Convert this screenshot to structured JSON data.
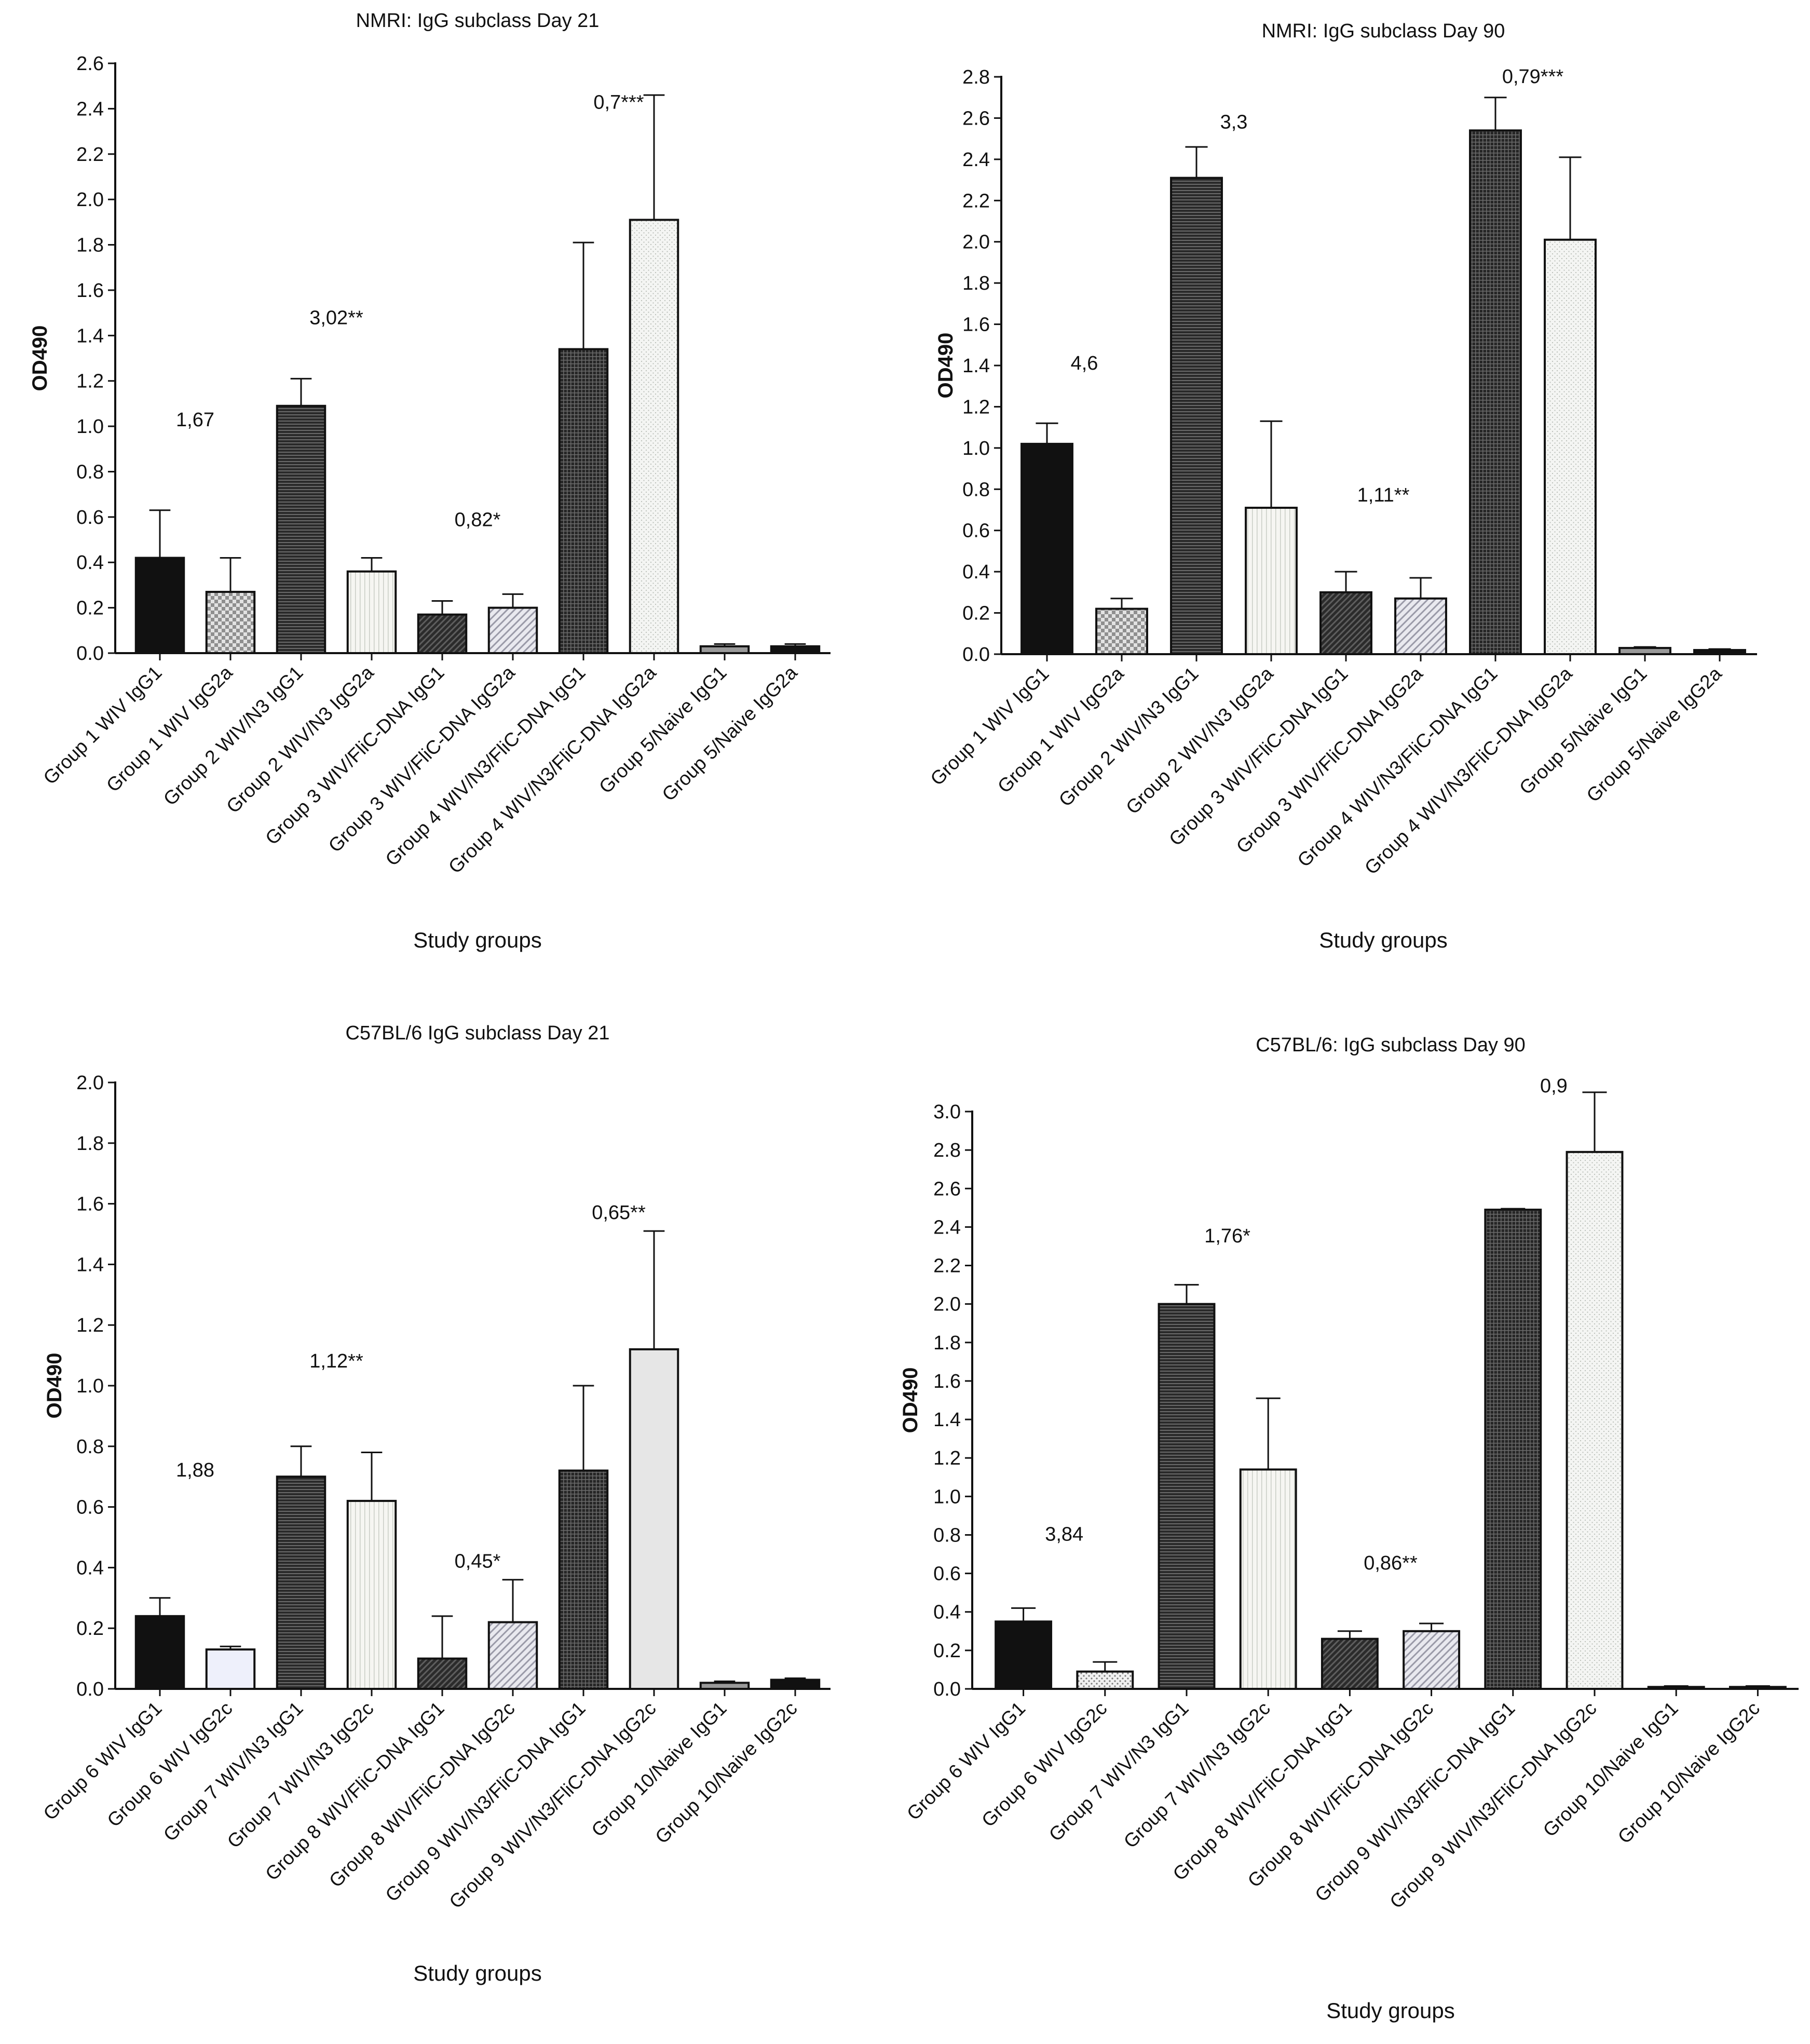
{
  "colors": {
    "axis": "#111111",
    "text": "#111111",
    "bar_stroke": "#111111",
    "background": "#ffffff"
  },
  "chart_data": [
    {
      "type": "bar",
      "title": "NMRI: IgG subclass Day 21",
      "xlabel": "Study groups",
      "ylabel": "OD490",
      "ylim": [
        0,
        2.6
      ],
      "yticks": [
        "0.0",
        "0.2",
        "0.4",
        "0.6",
        "0.8",
        "1.0",
        "1.2",
        "1.4",
        "1.6",
        "1.8",
        "2.0",
        "2.2",
        "2.4",
        "2.6"
      ],
      "categories": [
        "Group 1 WIV IgG1",
        "Group 1 WIV IgG2a",
        "Group 2 WIV/N3 IgG1",
        "Group 2 WIV/N3 IgG2a",
        "Group 3 WIV/FliC-DNA IgG1",
        "Group 3 WIV/FliC-DNA IgG2a",
        "Group 4 WIV/N3/FliC-DNA IgG1",
        "Group 4 WIV/N3/FliC-DNA IgG2a",
        "Group 5/Naive IgG1",
        "Group 5/Naive IgG2a"
      ],
      "values": [
        0.42,
        0.27,
        1.09,
        0.36,
        0.17,
        0.2,
        1.34,
        1.91,
        0.03,
        0.03
      ],
      "errors": [
        0.21,
        0.15,
        0.12,
        0.06,
        0.06,
        0.06,
        0.47,
        0.55,
        0.01,
        0.01
      ],
      "fills": [
        "solid-black",
        "checker",
        "hlines-dark",
        "vlines-light",
        "dark-diag",
        "light-diag",
        "grid-dark",
        "light-dots",
        "solid-gray",
        "solid-black"
      ],
      "annotations": [
        {
          "text": "1,67",
          "x": 0.5,
          "y": 1.0
        },
        {
          "text": "3,02**",
          "x": 2.5,
          "y": 1.45
        },
        {
          "text": "0,82*",
          "x": 4.5,
          "y": 0.56
        },
        {
          "text": "0,7***",
          "x": 6.5,
          "y": 2.4
        }
      ]
    },
    {
      "type": "bar",
      "title": "NMRI: IgG subclass Day 90",
      "xlabel": "Study groups",
      "ylabel": "OD490",
      "ylim": [
        0,
        2.8
      ],
      "yticks": [
        "0.0",
        "0.2",
        "0.4",
        "0.6",
        "0.8",
        "1.0",
        "1.2",
        "1.4",
        "1.6",
        "1.8",
        "2.0",
        "2.2",
        "2.4",
        "2.6",
        "2.8"
      ],
      "categories": [
        "Group 1 WIV IgG1",
        "Group 1 WIV IgG2a",
        "Group 2 WIV/N3 IgG1",
        "Group 2 WIV/N3 IgG2a",
        "Group 3 WIV/FliC-DNA IgG1",
        "Group 3 WIV/FliC-DNA IgG2a",
        "Group 4 WIV/N3/FliC-DNA IgG1",
        "Group 4 WIV/N3/FliC-DNA IgG2a",
        "Group 5/Naive IgG1",
        "Group 5/Naive IgG2a"
      ],
      "values": [
        1.02,
        0.22,
        2.31,
        0.71,
        0.3,
        0.27,
        2.54,
        2.01,
        0.03,
        0.02
      ],
      "errors": [
        0.1,
        0.05,
        0.15,
        0.42,
        0.1,
        0.1,
        0.16,
        0.4,
        0.005,
        0.005
      ],
      "fills": [
        "solid-black",
        "checker",
        "hlines-dark",
        "vlines-light",
        "dark-diag",
        "light-diag",
        "grid-dark",
        "light-dots",
        "solid-gray",
        "solid-black"
      ],
      "annotations": [
        {
          "text": "4,6",
          "x": 0.5,
          "y": 1.38
        },
        {
          "text": "3,3",
          "x": 2.5,
          "y": 2.55
        },
        {
          "text": "1,11**",
          "x": 4.5,
          "y": 0.74
        },
        {
          "text": "0,79***",
          "x": 6.5,
          "y": 2.77
        }
      ]
    },
    {
      "type": "bar",
      "title": "C57BL/6 IgG subclass Day 21",
      "xlabel": "Study groups",
      "ylabel": "OD490",
      "ylim": [
        0,
        2.0
      ],
      "yticks": [
        "0.0",
        "0.2",
        "0.4",
        "0.6",
        "0.8",
        "1.0",
        "1.2",
        "1.4",
        "1.6",
        "1.8",
        "2.0"
      ],
      "categories": [
        "Group 6 WIV IgG1",
        "Group 6 WIV IgG2c",
        "Group 7 WIV/N3 IgG1",
        "Group 7 WIV/N3 IgG2c",
        "Group 8 WIV/FliC-DNA IgG1",
        "Group 8 WIV/FliC-DNA IgG2c",
        "Group 9 WIV/N3/FliC-DNA IgG1",
        "Group 9 WIV/N3/FliC-DNA IgG2c",
        "Group 10/Naive IgG1",
        "Group 10/Naive IgG2c"
      ],
      "values": [
        0.24,
        0.13,
        0.7,
        0.62,
        0.1,
        0.22,
        0.72,
        1.12,
        0.02,
        0.03
      ],
      "errors": [
        0.06,
        0.01,
        0.1,
        0.16,
        0.14,
        0.14,
        0.28,
        0.39,
        0.005,
        0.005
      ],
      "fills": [
        "solid-black",
        "pale-blue",
        "hlines-dark",
        "vlines-light",
        "dark-diag",
        "light-diag",
        "grid-dark",
        "plain-lightgray",
        "solid-gray",
        "solid-black"
      ],
      "annotations": [
        {
          "text": "1,88",
          "x": 0.5,
          "y": 0.7
        },
        {
          "text": "1,12**",
          "x": 2.5,
          "y": 1.06
        },
        {
          "text": "0,45*",
          "x": 4.5,
          "y": 0.4
        },
        {
          "text": "0,65**",
          "x": 6.5,
          "y": 1.55
        }
      ]
    },
    {
      "type": "bar",
      "title": "C57BL/6: IgG subclass Day 90",
      "xlabel": "Study groups",
      "ylabel": "OD490",
      "ylim": [
        0,
        3.0
      ],
      "yticks": [
        "0.0",
        "0.2",
        "0.4",
        "0.6",
        "0.8",
        "1.0",
        "1.2",
        "1.4",
        "1.6",
        "1.8",
        "2.0",
        "2.2",
        "2.4",
        "2.6",
        "2.8",
        "3.0"
      ],
      "categories": [
        "Group 6 WIV IgG1",
        "Group 6 WIV IgG2c",
        "Group 7 WIV/N3 IgG1",
        "Group 7 WIV/N3 IgG2c",
        "Group 8 WIV/FliC-DNA IgG1",
        "Group 8 WIV/FliC-DNA IgG2c",
        "Group 9 WIV/N3/FliC-DNA IgG1",
        "Group 9 WIV/N3/FliC-DNA IgG2c",
        "Group 10/Naive IgG1",
        "Group 10/Naive IgG2c"
      ],
      "values": [
        0.35,
        0.09,
        2.0,
        1.14,
        0.26,
        0.3,
        2.49,
        2.79,
        0.01,
        0.01
      ],
      "errors": [
        0.07,
        0.05,
        0.1,
        0.37,
        0.04,
        0.04,
        0.005,
        0.31,
        0.005,
        0.005
      ],
      "fills": [
        "solid-black",
        "dots-light",
        "hlines-dark",
        "vlines-light",
        "dark-diag",
        "light-diag",
        "grid-dark",
        "light-dots",
        "solid-gray",
        "solid-black"
      ],
      "annotations": [
        {
          "text": "3,84",
          "x": 0.5,
          "y": 0.77
        },
        {
          "text": "1,76*",
          "x": 2.5,
          "y": 2.32
        },
        {
          "text": "0,86**",
          "x": 4.5,
          "y": 0.62
        },
        {
          "text": "0,9",
          "x": 6.5,
          "y": 3.1
        }
      ]
    }
  ]
}
